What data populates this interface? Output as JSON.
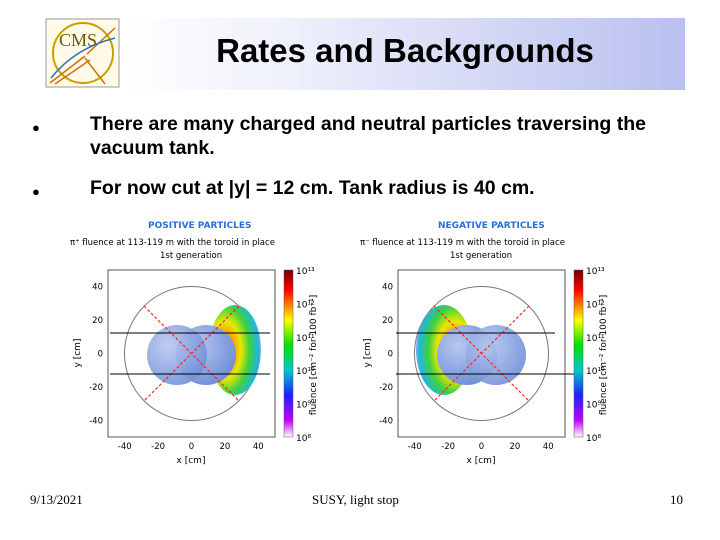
{
  "slide": {
    "title": "Rates and Backgrounds",
    "bullets": [
      "There are many charged and neutral particles traversing the vacuum tank.",
      "For now cut at |y| = 12 cm. Tank radius is 40 cm."
    ],
    "logo_text": "CMS",
    "footer": {
      "date": "9/13/2021",
      "center": "SUSY, light stop",
      "page": "10"
    }
  },
  "chart_data": [
    {
      "type": "heatmap",
      "heading": "POSITIVE PARTICLES",
      "title_line1": "π⁺ fluence at 113-119 m with the toroid in place",
      "title_line2": "1st generation",
      "xlabel": "x [cm]",
      "ylabel": "y [cm]",
      "xticks": [
        "-40",
        "-20",
        "0",
        "20",
        "40"
      ],
      "yticks": [
        "40",
        "20",
        "0",
        "-20",
        "-40"
      ],
      "xlim": [
        -50,
        50
      ],
      "ylim": [
        -50,
        50
      ],
      "colorbar_label": "fluence [cm⁻² for 100 fb⁻¹]",
      "colorbar_ticks": [
        "10¹³",
        "10¹²",
        "10¹¹",
        "10¹⁰",
        "10⁹",
        "10⁸"
      ],
      "tank_radius_cm": 40,
      "cut_y_cm": 12,
      "hot_side": "right"
    },
    {
      "type": "heatmap",
      "heading": "NEGATIVE PARTICLES",
      "title_line1": "π⁻ fluence at 113-119 m with the toroid in place",
      "title_line2": "1st generation",
      "xlabel": "x [cm]",
      "ylabel": "y [cm]",
      "xticks": [
        "-40",
        "-20",
        "0",
        "20",
        "40"
      ],
      "yticks": [
        "40",
        "20",
        "0",
        "-20",
        "-40"
      ],
      "xlim": [
        -50,
        50
      ],
      "ylim": [
        -50,
        50
      ],
      "colorbar_label": "fluence [cm⁻² for 100 fb⁻¹]",
      "colorbar_ticks": [
        "10¹³",
        "10¹²",
        "10¹¹",
        "10¹⁰",
        "10⁹",
        "10⁸"
      ],
      "tank_radius_cm": 40,
      "cut_y_cm": 12,
      "hot_side": "left"
    }
  ]
}
